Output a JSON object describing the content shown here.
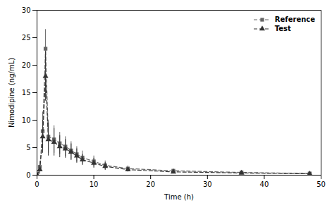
{
  "chart_data": {
    "type": "line",
    "xlabel": "Time (h)",
    "ylabel": "Nimodipine (ng/mL)",
    "x": [
      0,
      0.5,
      1.0,
      1.5,
      2.0,
      3.0,
      4.0,
      5.0,
      6.0,
      7.0,
      8.0,
      10.0,
      12.0,
      16.0,
      24.0,
      36.0,
      48.0
    ],
    "series": [
      {
        "name": "Reference",
        "color": "#666666",
        "marker": "square",
        "line_style": "dashed",
        "values": [
          0,
          1.5,
          8.0,
          23.0,
          7.0,
          6.5,
          5.8,
          5.2,
          4.5,
          3.8,
          3.2,
          2.5,
          1.8,
          1.2,
          0.8,
          0.5,
          0.3
        ],
        "err": [
          0,
          1.0,
          3.5,
          3.5,
          3.0,
          2.5,
          2.0,
          1.8,
          1.6,
          1.4,
          1.2,
          1.0,
          0.8,
          0.5,
          0.3,
          0.15,
          0.1
        ]
      },
      {
        "name": "Test",
        "color": "#333333",
        "marker": "triangle",
        "line_style": "dashed",
        "values": [
          0,
          1.0,
          7.0,
          18.0,
          6.5,
          6.0,
          5.2,
          4.8,
          4.2,
          3.5,
          2.8,
          2.2,
          1.6,
          1.0,
          0.6,
          0.4,
          0.25
        ],
        "err": [
          0,
          0.8,
          3.0,
          4.5,
          3.0,
          2.5,
          2.0,
          1.7,
          1.5,
          1.3,
          1.0,
          0.9,
          0.7,
          0.4,
          0.2,
          0.12,
          0.08
        ]
      }
    ],
    "xlim": [
      0,
      50
    ],
    "ylim": [
      0,
      30
    ],
    "xticks": [
      0,
      10,
      20,
      30,
      40,
      50
    ],
    "yticks": [
      0,
      5,
      10,
      15,
      20,
      25,
      30
    ],
    "legend": "upper right"
  }
}
